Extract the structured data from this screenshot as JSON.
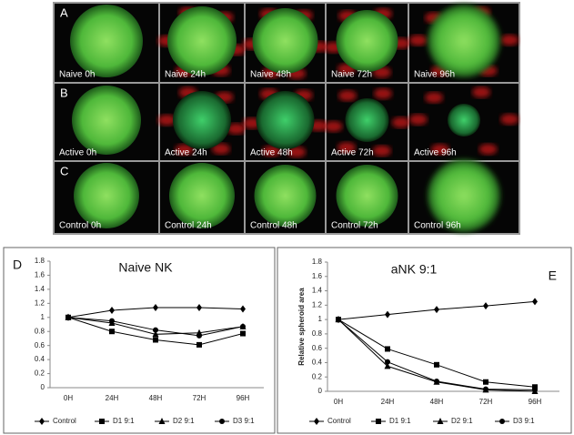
{
  "figure": {
    "panels": [
      {
        "label": "A",
        "images": [
          "Naive 0h",
          "Naive 24h",
          "Naive 48h",
          "Naive 72h",
          "Naive 96h"
        ]
      },
      {
        "label": "B",
        "images": [
          "Active 0h",
          "Active 24h",
          "Active 48h",
          "Active 72h",
          "Active 96h"
        ]
      },
      {
        "label": "C",
        "images": [
          "Control 0h",
          "Control 24h",
          "Control 48h",
          "Control 72h",
          "Control 96h"
        ]
      }
    ]
  },
  "chart_data": [
    {
      "type": "line",
      "panel_label": "D",
      "title": "Naive NK",
      "categories": [
        "0H",
        "24H",
        "48H",
        "72H",
        "96H"
      ],
      "ylim": [
        0,
        1.8
      ],
      "yticks": [
        0,
        0.2,
        0.4,
        0.6,
        0.8,
        1,
        1.2,
        1.4,
        1.6,
        1.8
      ],
      "series": [
        {
          "name": "Control",
          "color": "#000000",
          "marker": "diamond",
          "values": [
            1,
            1.1,
            1.14,
            1.14,
            1.12
          ]
        },
        {
          "name": "D1 9:1",
          "color": "#000000",
          "marker": "square",
          "values": [
            1,
            0.8,
            0.68,
            0.61,
            0.77
          ]
        },
        {
          "name": "D2 9:1",
          "color": "#000000",
          "marker": "triangle",
          "values": [
            1,
            0.92,
            0.76,
            0.78,
            0.87
          ]
        },
        {
          "name": "D3 9:1",
          "color": "#000000",
          "marker": "circle",
          "values": [
            1,
            0.95,
            0.82,
            0.74,
            0.87
          ]
        }
      ]
    },
    {
      "type": "line",
      "panel_label": "E",
      "title": "aNK 9:1",
      "y_label": "Relative spheroid area",
      "categories": [
        "0H",
        "24H",
        "48H",
        "72H",
        "96H"
      ],
      "ylim": [
        0,
        1.8
      ],
      "yticks": [
        0,
        0.2,
        0.4,
        0.6,
        0.8,
        1,
        1.2,
        1.4,
        1.6,
        1.8
      ],
      "series": [
        {
          "name": "Control",
          "color": "#000000",
          "marker": "diamond",
          "values": [
            1,
            1.07,
            1.14,
            1.19,
            1.25
          ]
        },
        {
          "name": "D1 9:1",
          "color": "#000000",
          "marker": "square",
          "values": [
            1,
            0.59,
            0.37,
            0.13,
            0.06
          ]
        },
        {
          "name": "D2 9:1",
          "color": "#000000",
          "marker": "triangle",
          "values": [
            1,
            0.35,
            0.13,
            0.02,
            0
          ]
        },
        {
          "name": "D3 9:1",
          "color": "#000000",
          "marker": "circle",
          "values": [
            1,
            0.41,
            0.14,
            0.03,
            0.02
          ]
        }
      ]
    }
  ]
}
